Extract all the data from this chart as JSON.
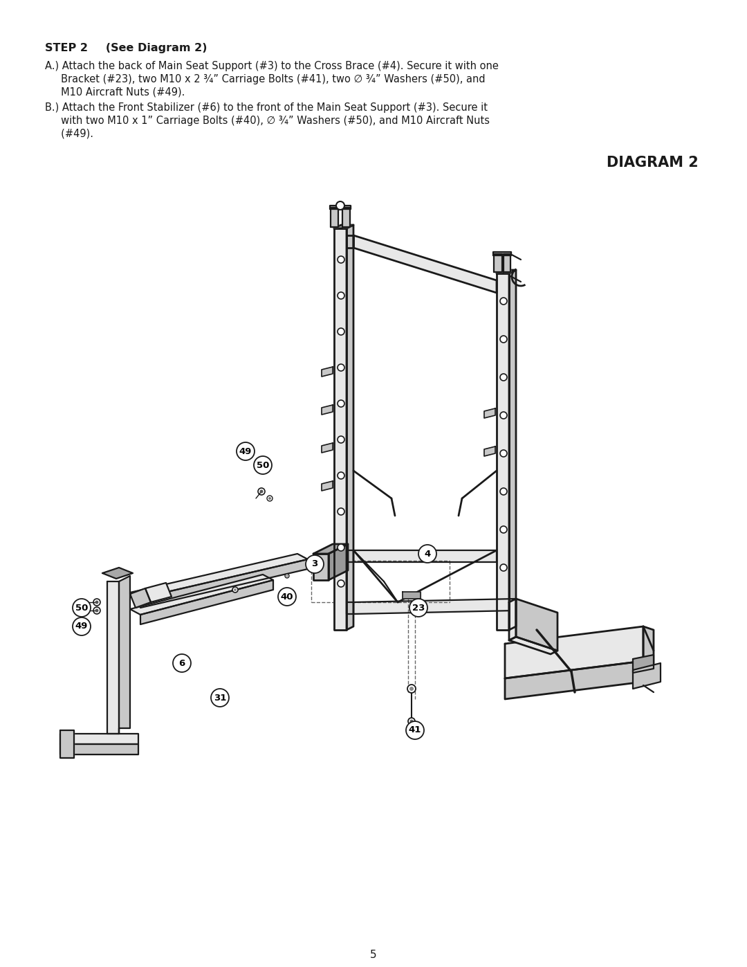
{
  "bg_color": "#ffffff",
  "text_color": "#000000",
  "title": "DIAGRAM 2",
  "page_number": "5",
  "step_header_bold": "STEP 2",
  "step_header_rest": "   (See Diagram 2)",
  "line_a1": "A.) Attach the back of Main Seat Support (#3) to the Cross Brace (#4). Secure it with one",
  "line_a2": "     Bracket (#23), two M10 x 2 ¾” Carriage Bolts (#41), two ∅ ¾” Washers (#50), and",
  "line_a3": "     M10 Aircraft Nuts (#49).",
  "line_b1": "B.) Attach the Front Stabilizer (#6) to the front of the Main Seat Support (#3). Secure it",
  "line_b2": "     with two M10 x 1” Carriage Bolts (#40), ∅ ¾” Washers (#50), and M10 Aircraft Nuts",
  "line_b3": "     (#49).",
  "font_step": 11.5,
  "font_body": 10.5,
  "font_title": 15,
  "font_page": 11,
  "lc": "#1a1a1a",
  "lc_light": "#555555",
  "fill_light": "#e8e8e8",
  "fill_mid": "#c8c8c8",
  "fill_dark": "#a8a8a8"
}
